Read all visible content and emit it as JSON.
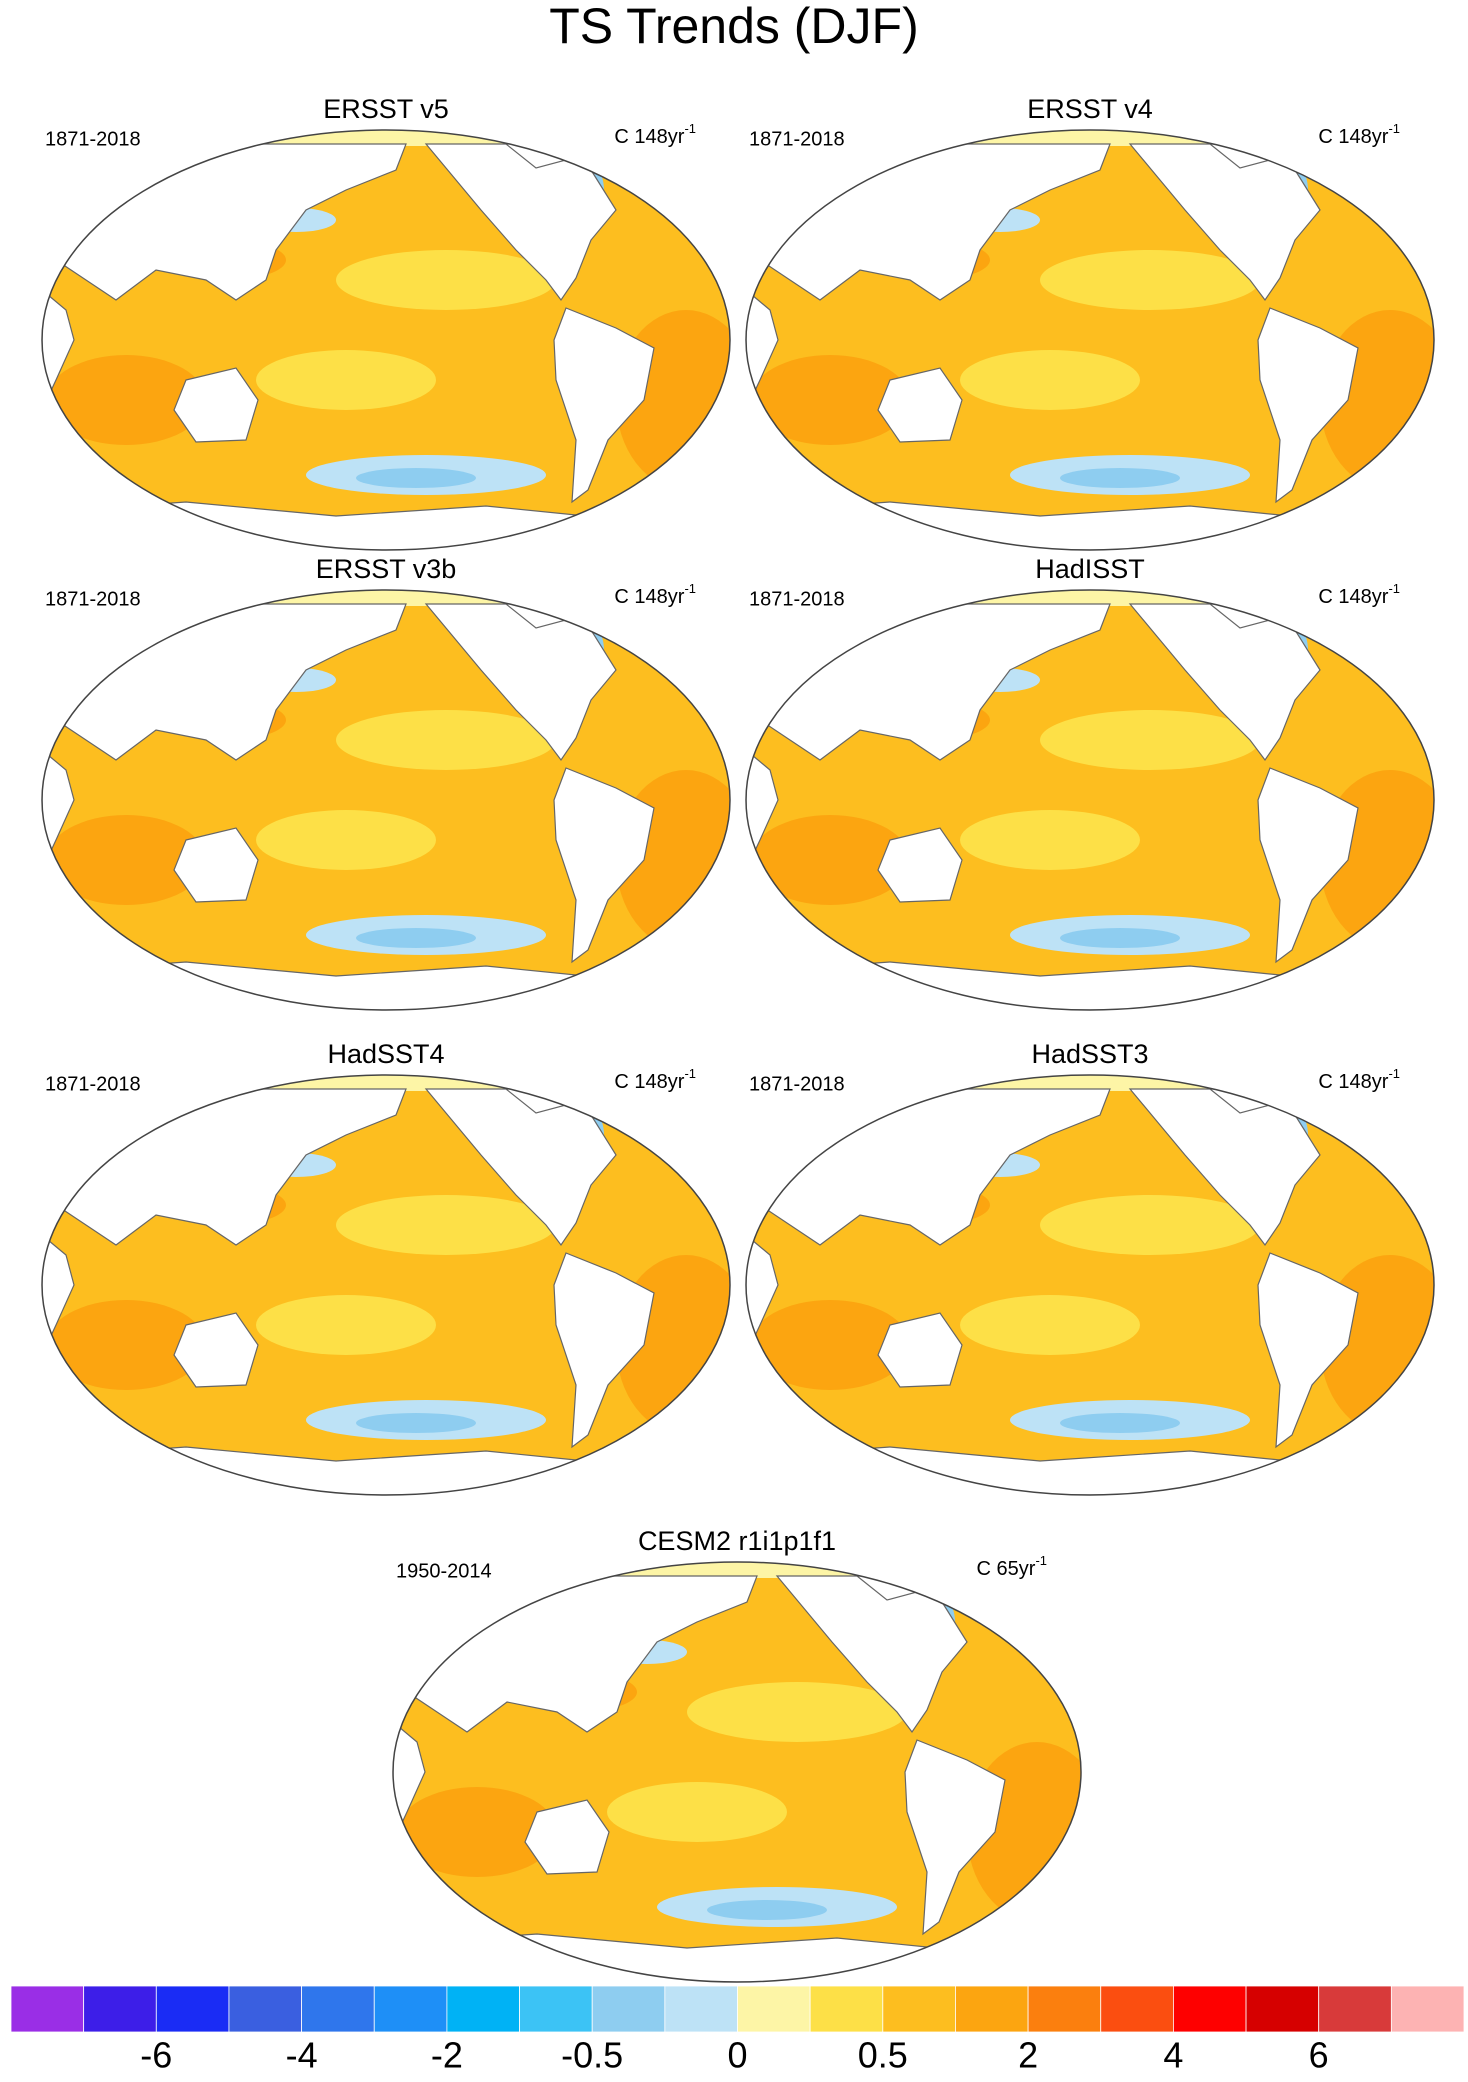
{
  "header": {
    "title": "TS Trends (DJF)"
  },
  "panels": [
    {
      "title": "ERSST v5",
      "period": "1871-2018",
      "units": "C 148yr",
      "units_exponent": "-1"
    },
    {
      "title": "ERSST v4",
      "period": "1871-2018",
      "units": "C 148yr",
      "units_exponent": "-1"
    },
    {
      "title": "ERSST v3b",
      "period": "1871-2018",
      "units": "C 148yr",
      "units_exponent": "-1"
    },
    {
      "title": "HadISST",
      "period": "1871-2018",
      "units": "C 148yr",
      "units_exponent": "-1"
    },
    {
      "title": "HadSST4",
      "period": "1871-2018",
      "units": "C 148yr",
      "units_exponent": "-1"
    },
    {
      "title": "HadSST3",
      "period": "1871-2018",
      "units": "C 148yr",
      "units_exponent": "-1"
    },
    {
      "title": "CESM2 r1i1p1f1",
      "period": "1950-2014",
      "units": "C 65yr",
      "units_exponent": "-1"
    }
  ],
  "colorbar": {
    "colors": [
      "#9a2ee6",
      "#3d1ee8",
      "#1a2cf5",
      "#3a5fe0",
      "#2f76ec",
      "#1e8ff7",
      "#00b2f5",
      "#3cc3f5",
      "#8ecdf0",
      "#bde2f6",
      "#fdf5a6",
      "#fde047",
      "#fdbe1f",
      "#fca510",
      "#fb7f0e",
      "#fb4e10",
      "#fe0000",
      "#d60000",
      "#d83a3a",
      "#fdb3b3"
    ],
    "labels": [
      -6,
      -4,
      -2,
      -0.5,
      0,
      0.5,
      2,
      4,
      6
    ]
  }
}
